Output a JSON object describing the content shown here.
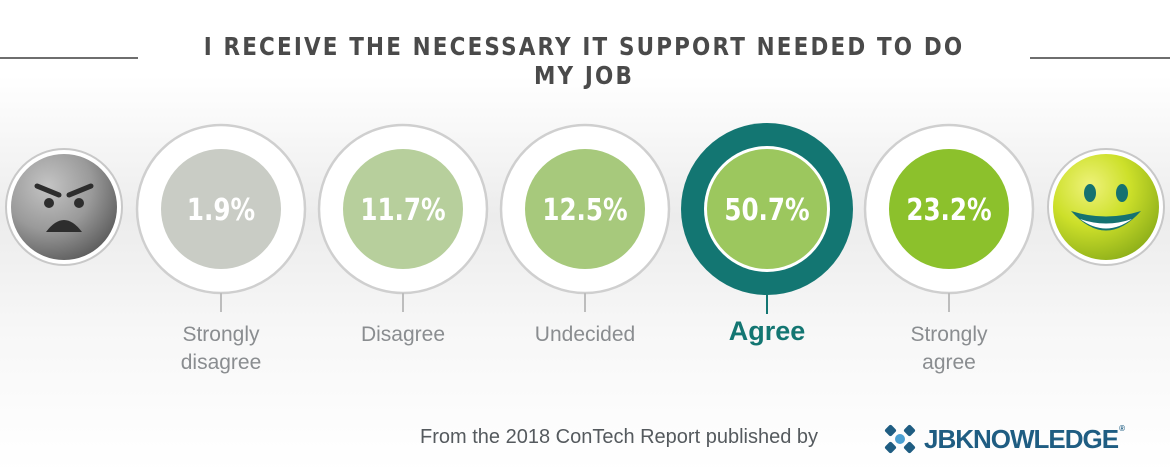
{
  "title": "I RECEIVE THE NECESSARY IT SUPPORT NEEDED TO DO MY JOB",
  "chart_data": {
    "type": "bar",
    "categories": [
      "Strongly disagree",
      "Disagree",
      "Undecided",
      "Agree",
      "Strongly agree"
    ],
    "values": [
      1.9,
      11.7,
      12.5,
      50.7,
      23.2
    ],
    "value_labels": [
      "1.9%",
      "11.7%",
      "12.5%",
      "50.7%",
      "23.2%"
    ],
    "label_lines": [
      [
        "Strongly",
        "disagree"
      ],
      [
        "Disagree"
      ],
      [
        "Undecided"
      ],
      [
        "Agree"
      ],
      [
        "Strongly",
        "agree"
      ]
    ],
    "highlight_index": 3,
    "colors": {
      "fills": [
        "#c9ccc5",
        "#b7cf9c",
        "#a7c97c",
        "#9cc75e",
        "#8cc12c"
      ],
      "highlight_ring": "#137672",
      "label": "#8a8d90",
      "highlight_label": "#137672",
      "value_text": "#ffffff"
    }
  },
  "icons": {
    "left": "angry-face-icon",
    "right": "smiling-face-icon"
  },
  "footer": {
    "text": "From the 2018 ConTech Report published by",
    "brand": "JBKNOWLEDGE",
    "brand_mark": "®",
    "brand_color": "#1f5d82"
  }
}
